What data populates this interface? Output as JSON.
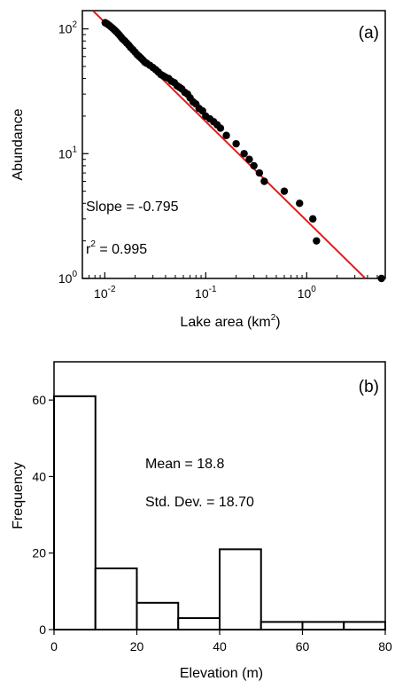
{
  "chart_data": [
    {
      "type": "scatter",
      "panel_label": "(a)",
      "xlabel": "Lake area (km",
      "xlabel_sup": "2",
      "xlabel_end": ")",
      "ylabel": "Abundance",
      "x_scale": "log",
      "y_scale": "log",
      "xlim": [
        0.006,
        6
      ],
      "ylim": [
        1,
        140
      ],
      "x_ticks": [
        {
          "value": 0.01,
          "base": "10",
          "exp": "-2"
        },
        {
          "value": 0.1,
          "base": "10",
          "exp": "-1"
        },
        {
          "value": 1,
          "base": "10",
          "exp": "0"
        }
      ],
      "y_ticks": [
        {
          "value": 1,
          "base": "10",
          "exp": "0"
        },
        {
          "value": 10,
          "base": "10",
          "exp": "1"
        },
        {
          "value": 100,
          "base": "10",
          "exp": "2"
        }
      ],
      "annotations": {
        "slope": "Slope = -0.795",
        "r2_prefix": "r",
        "r2_sup": "2",
        "r2_value": " = 0.995"
      },
      "fit_line": {
        "slope": -0.795,
        "intercept_at_x1": 2.9,
        "color": "#e31a1c"
      },
      "points": [
        {
          "x": 0.0101,
          "y": 112
        },
        {
          "x": 0.0105,
          "y": 110
        },
        {
          "x": 0.011,
          "y": 107
        },
        {
          "x": 0.0115,
          "y": 104
        },
        {
          "x": 0.012,
          "y": 101
        },
        {
          "x": 0.0125,
          "y": 98
        },
        {
          "x": 0.013,
          "y": 95
        },
        {
          "x": 0.0135,
          "y": 92
        },
        {
          "x": 0.014,
          "y": 89
        },
        {
          "x": 0.0145,
          "y": 86
        },
        {
          "x": 0.015,
          "y": 83
        },
        {
          "x": 0.0158,
          "y": 80
        },
        {
          "x": 0.0165,
          "y": 77
        },
        {
          "x": 0.0173,
          "y": 74
        },
        {
          "x": 0.018,
          "y": 71
        },
        {
          "x": 0.019,
          "y": 68
        },
        {
          "x": 0.02,
          "y": 65
        },
        {
          "x": 0.021,
          "y": 62
        },
        {
          "x": 0.022,
          "y": 60
        },
        {
          "x": 0.023,
          "y": 58
        },
        {
          "x": 0.024,
          "y": 56
        },
        {
          "x": 0.025,
          "y": 54
        },
        {
          "x": 0.026,
          "y": 53
        },
        {
          "x": 0.028,
          "y": 51
        },
        {
          "x": 0.03,
          "y": 49
        },
        {
          "x": 0.032,
          "y": 47
        },
        {
          "x": 0.034,
          "y": 45
        },
        {
          "x": 0.036,
          "y": 43
        },
        {
          "x": 0.038,
          "y": 42
        },
        {
          "x": 0.04,
          "y": 41
        },
        {
          "x": 0.043,
          "y": 40
        },
        {
          "x": 0.046,
          "y": 38
        },
        {
          "x": 0.049,
          "y": 37
        },
        {
          "x": 0.052,
          "y": 35
        },
        {
          "x": 0.055,
          "y": 34
        },
        {
          "x": 0.058,
          "y": 33
        },
        {
          "x": 0.062,
          "y": 31
        },
        {
          "x": 0.066,
          "y": 30
        },
        {
          "x": 0.07,
          "y": 28
        },
        {
          "x": 0.075,
          "y": 26
        },
        {
          "x": 0.08,
          "y": 25
        },
        {
          "x": 0.086,
          "y": 23
        },
        {
          "x": 0.093,
          "y": 22
        },
        {
          "x": 0.1,
          "y": 20
        },
        {
          "x": 0.11,
          "y": 19
        },
        {
          "x": 0.12,
          "y": 18
        },
        {
          "x": 0.13,
          "y": 17
        },
        {
          "x": 0.14,
          "y": 16
        },
        {
          "x": 0.16,
          "y": 14
        },
        {
          "x": 0.2,
          "y": 12
        },
        {
          "x": 0.24,
          "y": 10
        },
        {
          "x": 0.27,
          "y": 9
        },
        {
          "x": 0.3,
          "y": 8
        },
        {
          "x": 0.34,
          "y": 7
        },
        {
          "x": 0.38,
          "y": 6
        },
        {
          "x": 0.6,
          "y": 5
        },
        {
          "x": 0.85,
          "y": 4
        },
        {
          "x": 1.15,
          "y": 3
        },
        {
          "x": 1.25,
          "y": 2
        },
        {
          "x": 5.5,
          "y": 1
        }
      ]
    },
    {
      "type": "bar",
      "panel_label": "(b)",
      "xlabel": "Elevation (m)",
      "ylabel": "Frequency",
      "xlim": [
        0,
        80
      ],
      "ylim": [
        0,
        70
      ],
      "x_ticks": [
        0,
        20,
        40,
        60,
        80
      ],
      "y_ticks": [
        0,
        20,
        40,
        60
      ],
      "bins": [
        {
          "start": 0,
          "end": 10,
          "value": 61
        },
        {
          "start": 10,
          "end": 20,
          "value": 16
        },
        {
          "start": 20,
          "end": 30,
          "value": 7
        },
        {
          "start": 30,
          "end": 40,
          "value": 3
        },
        {
          "start": 40,
          "end": 50,
          "value": 21
        },
        {
          "start": 50,
          "end": 60,
          "value": 2
        },
        {
          "start": 60,
          "end": 70,
          "value": 2
        },
        {
          "start": 70,
          "end": 80,
          "value": 2
        }
      ],
      "annotations": {
        "mean": "Mean = 18.8",
        "std": "Std. Dev. = 18.70"
      }
    }
  ]
}
